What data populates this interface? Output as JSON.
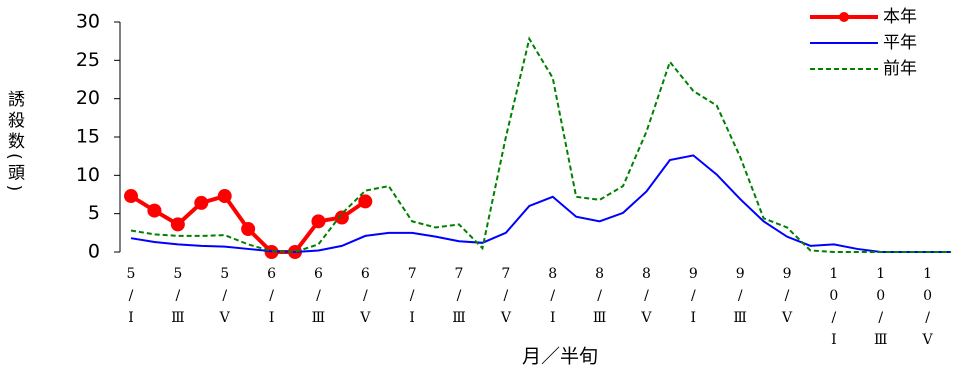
{
  "chart_data": {
    "type": "line",
    "y_label": "誘殺数(頭)",
    "x_label": "月／半旬",
    "categories": [
      "5/Ⅰ",
      null,
      "5/Ⅲ",
      null,
      "5/Ⅴ",
      null,
      "6/Ⅰ",
      null,
      "6/Ⅲ",
      null,
      "6/Ⅴ",
      null,
      "7/Ⅰ",
      null,
      "7/Ⅲ",
      null,
      "7/Ⅴ",
      null,
      "8/Ⅰ",
      null,
      "8/Ⅲ",
      null,
      "8/Ⅴ",
      null,
      "9/Ⅰ",
      null,
      "9/Ⅲ",
      null,
      "9/Ⅴ",
      null,
      "10/Ⅰ",
      null,
      "10/Ⅲ",
      null,
      "10/Ⅴ",
      null
    ],
    "series": [
      {
        "name": "本年",
        "color": "#ff0000",
        "style": "solid-marker",
        "values": [
          7.3,
          5.4,
          3.6,
          6.4,
          7.3,
          3.0,
          0,
          0,
          4.0,
          4.5,
          6.6,
          null,
          null,
          null,
          null,
          null,
          null,
          null,
          null,
          null,
          null,
          null,
          null,
          null,
          null,
          null,
          null,
          null,
          null,
          null,
          null,
          null,
          null,
          null,
          null,
          null
        ]
      },
      {
        "name": "平年",
        "color": "#0000ff",
        "style": "solid",
        "values": [
          1.8,
          1.3,
          1.0,
          0.8,
          0.7,
          0.4,
          0.1,
          0,
          0.2,
          0.8,
          2.1,
          2.5,
          2.5,
          2.0,
          1.4,
          1.2,
          2.5,
          6.0,
          7.2,
          4.6,
          4.0,
          5.1,
          7.9,
          12.0,
          12.6,
          10.1,
          6.9,
          4.0,
          2.0,
          0.8,
          1.0,
          0.4,
          0,
          0,
          0,
          0
        ]
      },
      {
        "name": "前年",
        "color": "#008000",
        "style": "dashed",
        "values": [
          2.8,
          2.3,
          2.1,
          2.1,
          2.2,
          1.0,
          0.1,
          0,
          1.0,
          5.0,
          8.0,
          8.6,
          4.0,
          3.2,
          3.6,
          0.5,
          15.0,
          27.8,
          22.7,
          7.2,
          6.8,
          8.6,
          15.7,
          24.8,
          21.0,
          19.1,
          12.4,
          4.4,
          3.2,
          0.2,
          0,
          0,
          0,
          0,
          0,
          0
        ]
      }
    ],
    "ylim": [
      0,
      30
    ],
    "yticks": [
      0,
      5,
      10,
      15,
      20,
      25,
      30
    ],
    "legend": "upper right"
  }
}
